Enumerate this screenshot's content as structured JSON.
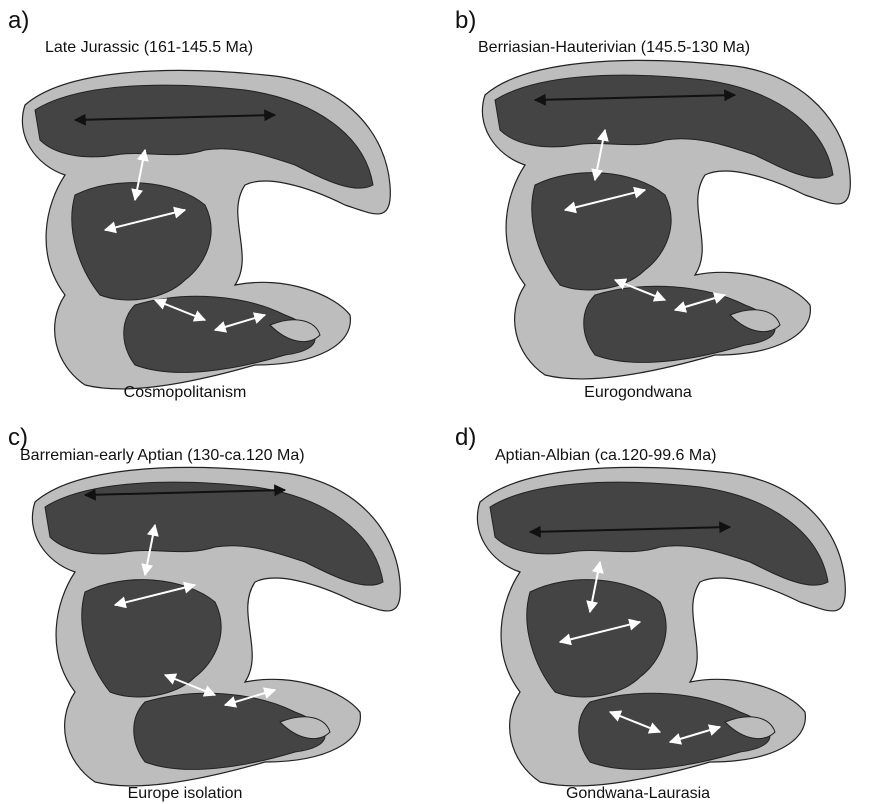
{
  "panels": [
    {
      "label": "a)",
      "title": "Late Jurassic (161-145.5 Ma)",
      "caption": "Cosmopolitanism"
    },
    {
      "label": "b)",
      "title": "Berriasian-Hauterivian (145.5-130 Ma)",
      "caption": "Eurogondwana"
    },
    {
      "label": "c)",
      "title": "Barremian-early Aptian (130-ca.120 Ma)",
      "caption": "Europe isolation"
    },
    {
      "label": "d)",
      "title": "Aptian-Albian (ca.120-99.6 Ma)",
      "caption": "Gondwana-Laurasia"
    }
  ]
}
